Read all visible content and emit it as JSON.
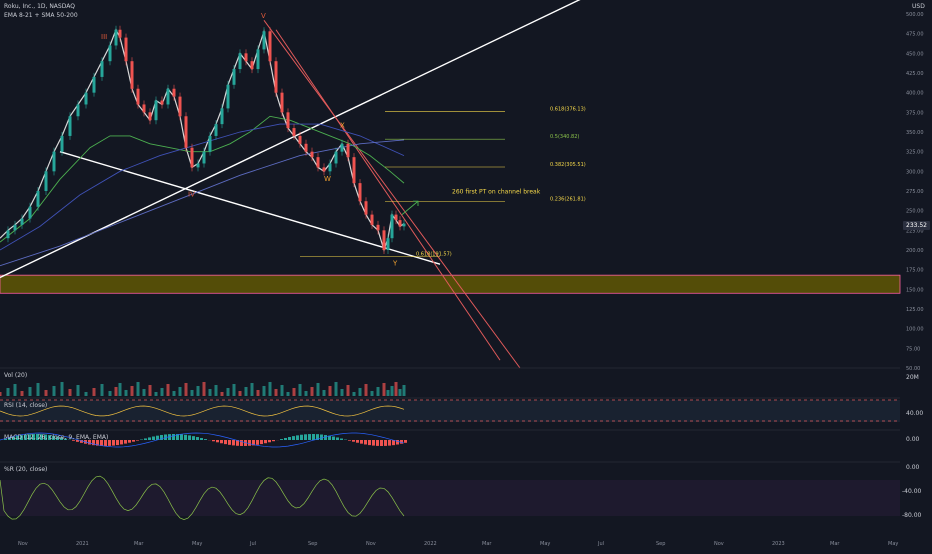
{
  "header": {
    "symbol_line": "Roku, Inc., 1D, NASDAQ",
    "indicators_line": "EMA 8-21 + SMA 50-200",
    "currency": "USD"
  },
  "panes": {
    "volume_label": "Vol (20)",
    "volume_scale": "20M",
    "rsi_label": "RSI (14, close)",
    "rsi_tick": "40.00",
    "macd_label": "MACD (12, 26, close, 9, EMA, EMA)",
    "macd_tick": "0.00",
    "wr_label": "%R (20, close)",
    "wr_ticks": [
      "0.00",
      "-40.00",
      "-80.00"
    ]
  },
  "chart_data": {
    "type": "line",
    "title": "Roku, Inc., 1D, NASDAQ",
    "y_scale": "linear",
    "ylim": [
      50,
      500
    ],
    "y_ticks": [
      "500.00",
      "475.00",
      "450.00",
      "425.00",
      "400.00",
      "375.00",
      "350.00",
      "325.00",
      "300.00",
      "275.00",
      "250.00",
      "225.00",
      "200.00",
      "175.00",
      "150.00",
      "125.00",
      "100.00",
      "75.00",
      "50.00"
    ],
    "x_tick_labels": [
      "Nov",
      "2021",
      "Mar",
      "May",
      "Jul",
      "Sep",
      "Nov",
      "2022",
      "Mar",
      "May",
      "Jul",
      "Sep",
      "Nov",
      "2023",
      "Mar",
      "May"
    ],
    "last_price": "233.52",
    "series": [
      {
        "values": [
          [
            0,
            215
          ],
          [
            8,
            225
          ],
          [
            15,
            232
          ],
          [
            22,
            240
          ],
          [
            30,
            255
          ],
          [
            38,
            275
          ],
          [
            46,
            300
          ],
          [
            54,
            325
          ],
          [
            62,
            345
          ],
          [
            70,
            370
          ],
          [
            78,
            385
          ],
          [
            86,
            400
          ],
          [
            94,
            420
          ],
          [
            102,
            440
          ],
          [
            110,
            460
          ],
          [
            116,
            480
          ],
          [
            120,
            470
          ],
          [
            126,
            440
          ],
          [
            132,
            405
          ],
          [
            138,
            385
          ],
          [
            144,
            375
          ],
          [
            150,
            365
          ],
          [
            156,
            390
          ],
          [
            162,
            385
          ],
          [
            168,
            405
          ],
          [
            174,
            395
          ],
          [
            180,
            370
          ],
          [
            186,
            330
          ],
          [
            192,
            305
          ],
          [
            198,
            310
          ],
          [
            204,
            325
          ],
          [
            210,
            345
          ],
          [
            216,
            360
          ],
          [
            222,
            380
          ],
          [
            228,
            410
          ],
          [
            234,
            430
          ],
          [
            240,
            450
          ],
          [
            246,
            440
          ],
          [
            252,
            430
          ],
          [
            258,
            455
          ],
          [
            264,
            478
          ],
          [
            270,
            440
          ],
          [
            276,
            400
          ],
          [
            282,
            375
          ],
          [
            288,
            355
          ],
          [
            294,
            345
          ],
          [
            300,
            335
          ],
          [
            306,
            325
          ],
          [
            312,
            318
          ],
          [
            318,
            305
          ],
          [
            324,
            300
          ],
          [
            330,
            310
          ],
          [
            336,
            325
          ],
          [
            342,
            335
          ],
          [
            348,
            318
          ],
          [
            354,
            285
          ],
          [
            360,
            262
          ],
          [
            366,
            245
          ],
          [
            372,
            232
          ],
          [
            378,
            225
          ],
          [
            384,
            200
          ],
          [
            388,
            215
          ],
          [
            392,
            245
          ],
          [
            396,
            238
          ],
          [
            400,
            230
          ],
          [
            404,
            233.52
          ]
        ]
      },
      {
        "values": [
          [
            0,
            210
          ],
          [
            30,
            240
          ],
          [
            60,
            290
          ],
          [
            90,
            330
          ],
          [
            110,
            345
          ],
          [
            130,
            345
          ],
          [
            150,
            335
          ],
          [
            170,
            330
          ],
          [
            190,
            325
          ],
          [
            210,
            325
          ],
          [
            230,
            335
          ],
          [
            250,
            350
          ],
          [
            270,
            370
          ],
          [
            290,
            365
          ],
          [
            310,
            355
          ],
          [
            330,
            345
          ],
          [
            350,
            335
          ],
          [
            370,
            320
          ],
          [
            390,
            300
          ],
          [
            404,
            285
          ]
        ]
      },
      {
        "values": [
          [
            0,
            200
          ],
          [
            40,
            230
          ],
          [
            80,
            270
          ],
          [
            120,
            300
          ],
          [
            160,
            320
          ],
          [
            200,
            335
          ],
          [
            240,
            350
          ],
          [
            280,
            360
          ],
          [
            320,
            360
          ],
          [
            360,
            345
          ],
          [
            404,
            320
          ]
        ]
      },
      {
        "values": [
          [
            0,
            180
          ],
          [
            60,
            205
          ],
          [
            120,
            235
          ],
          [
            180,
            265
          ],
          [
            240,
            295
          ],
          [
            300,
            320
          ],
          [
            360,
            335
          ],
          [
            404,
            340
          ]
        ]
      }
    ],
    "annotations": [
      "III",
      "V",
      "IV",
      "W",
      "X",
      "Y",
      "260 first PT on channel break"
    ],
    "fib_levels": [
      {
        "label": "0.618(376.13)",
        "value": 376.13
      },
      {
        "label": "0.5(340.82)",
        "value": 340.82
      },
      {
        "label": "0.382(305.51)",
        "value": 305.51
      },
      {
        "label": "0.236(261.81)",
        "value": 261.81
      },
      {
        "label": "0.618(191.57)",
        "value": 191.57
      }
    ],
    "zone": {
      "low": 145,
      "high": 168
    },
    "trendlines": [
      {
        "name": "white-rising",
        "from": [
          0,
          165
        ],
        "to": [
          640,
          555
        ]
      },
      {
        "name": "white-falling",
        "from": [
          60,
          325
        ],
        "to": [
          440,
          182
        ]
      },
      {
        "name": "red-channel-1",
        "from": [
          264,
          492
        ],
        "to": [
          520,
          50
        ]
      },
      {
        "name": "red-channel-2",
        "from": [
          276,
          480
        ],
        "to": [
          500,
          60
        ]
      }
    ]
  },
  "colors": {
    "background": "#131722",
    "candle_up": "#26a69a",
    "candle_down": "#ef5350",
    "trendline": "#ffffff",
    "channel": "#e05a5a",
    "wave_label": "#f0a030",
    "roman_label": "#e05a3a",
    "fib_text": "#f5d84a",
    "fib_text_green": "#8bc34a",
    "zone_fill": "#6b6000",
    "zone_border": "#ff5fa2",
    "ema_fast": "#4caf50",
    "sma": "#3f51b5",
    "rsi_line": "#f0c040",
    "macd_line": "#2962ff",
    "signal_line": "#ff6d00",
    "wr_line": "#8bc34a"
  }
}
